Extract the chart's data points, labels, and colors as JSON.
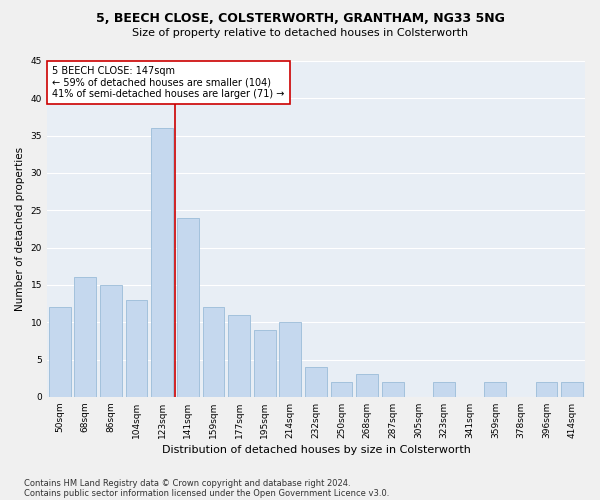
{
  "title1": "5, BEECH CLOSE, COLSTERWORTH, GRANTHAM, NG33 5NG",
  "title2": "Size of property relative to detached houses in Colsterworth",
  "xlabel": "Distribution of detached houses by size in Colsterworth",
  "ylabel": "Number of detached properties",
  "categories": [
    "50sqm",
    "68sqm",
    "86sqm",
    "104sqm",
    "123sqm",
    "141sqm",
    "159sqm",
    "177sqm",
    "195sqm",
    "214sqm",
    "232sqm",
    "250sqm",
    "268sqm",
    "287sqm",
    "305sqm",
    "323sqm",
    "341sqm",
    "359sqm",
    "378sqm",
    "396sqm",
    "414sqm"
  ],
  "values": [
    12,
    16,
    15,
    13,
    36,
    24,
    12,
    11,
    9,
    10,
    4,
    2,
    3,
    2,
    0,
    2,
    0,
    2,
    0,
    2,
    2
  ],
  "bar_color": "#c5d8ee",
  "bar_edge_color": "#9bbcd8",
  "fig_bg_color": "#f0f0f0",
  "plot_bg_color": "#e8eef5",
  "grid_color": "#ffffff",
  "vline_color": "#cc0000",
  "vline_x_index": 4.5,
  "annotation_line1": "5 BEECH CLOSE: 147sqm",
  "annotation_line2": "← 59% of detached houses are smaller (104)",
  "annotation_line3": "41% of semi-detached houses are larger (71) →",
  "annotation_box_color": "#cc0000",
  "ylim": [
    0,
    45
  ],
  "yticks": [
    0,
    5,
    10,
    15,
    20,
    25,
    30,
    35,
    40,
    45
  ],
  "title1_fontsize": 9,
  "title2_fontsize": 8,
  "xlabel_fontsize": 8,
  "ylabel_fontsize": 7.5,
  "tick_fontsize": 6.5,
  "annot_fontsize": 7,
  "footnote1": "Contains HM Land Registry data © Crown copyright and database right 2024.",
  "footnote2": "Contains public sector information licensed under the Open Government Licence v3.0.",
  "footnote_fontsize": 6
}
